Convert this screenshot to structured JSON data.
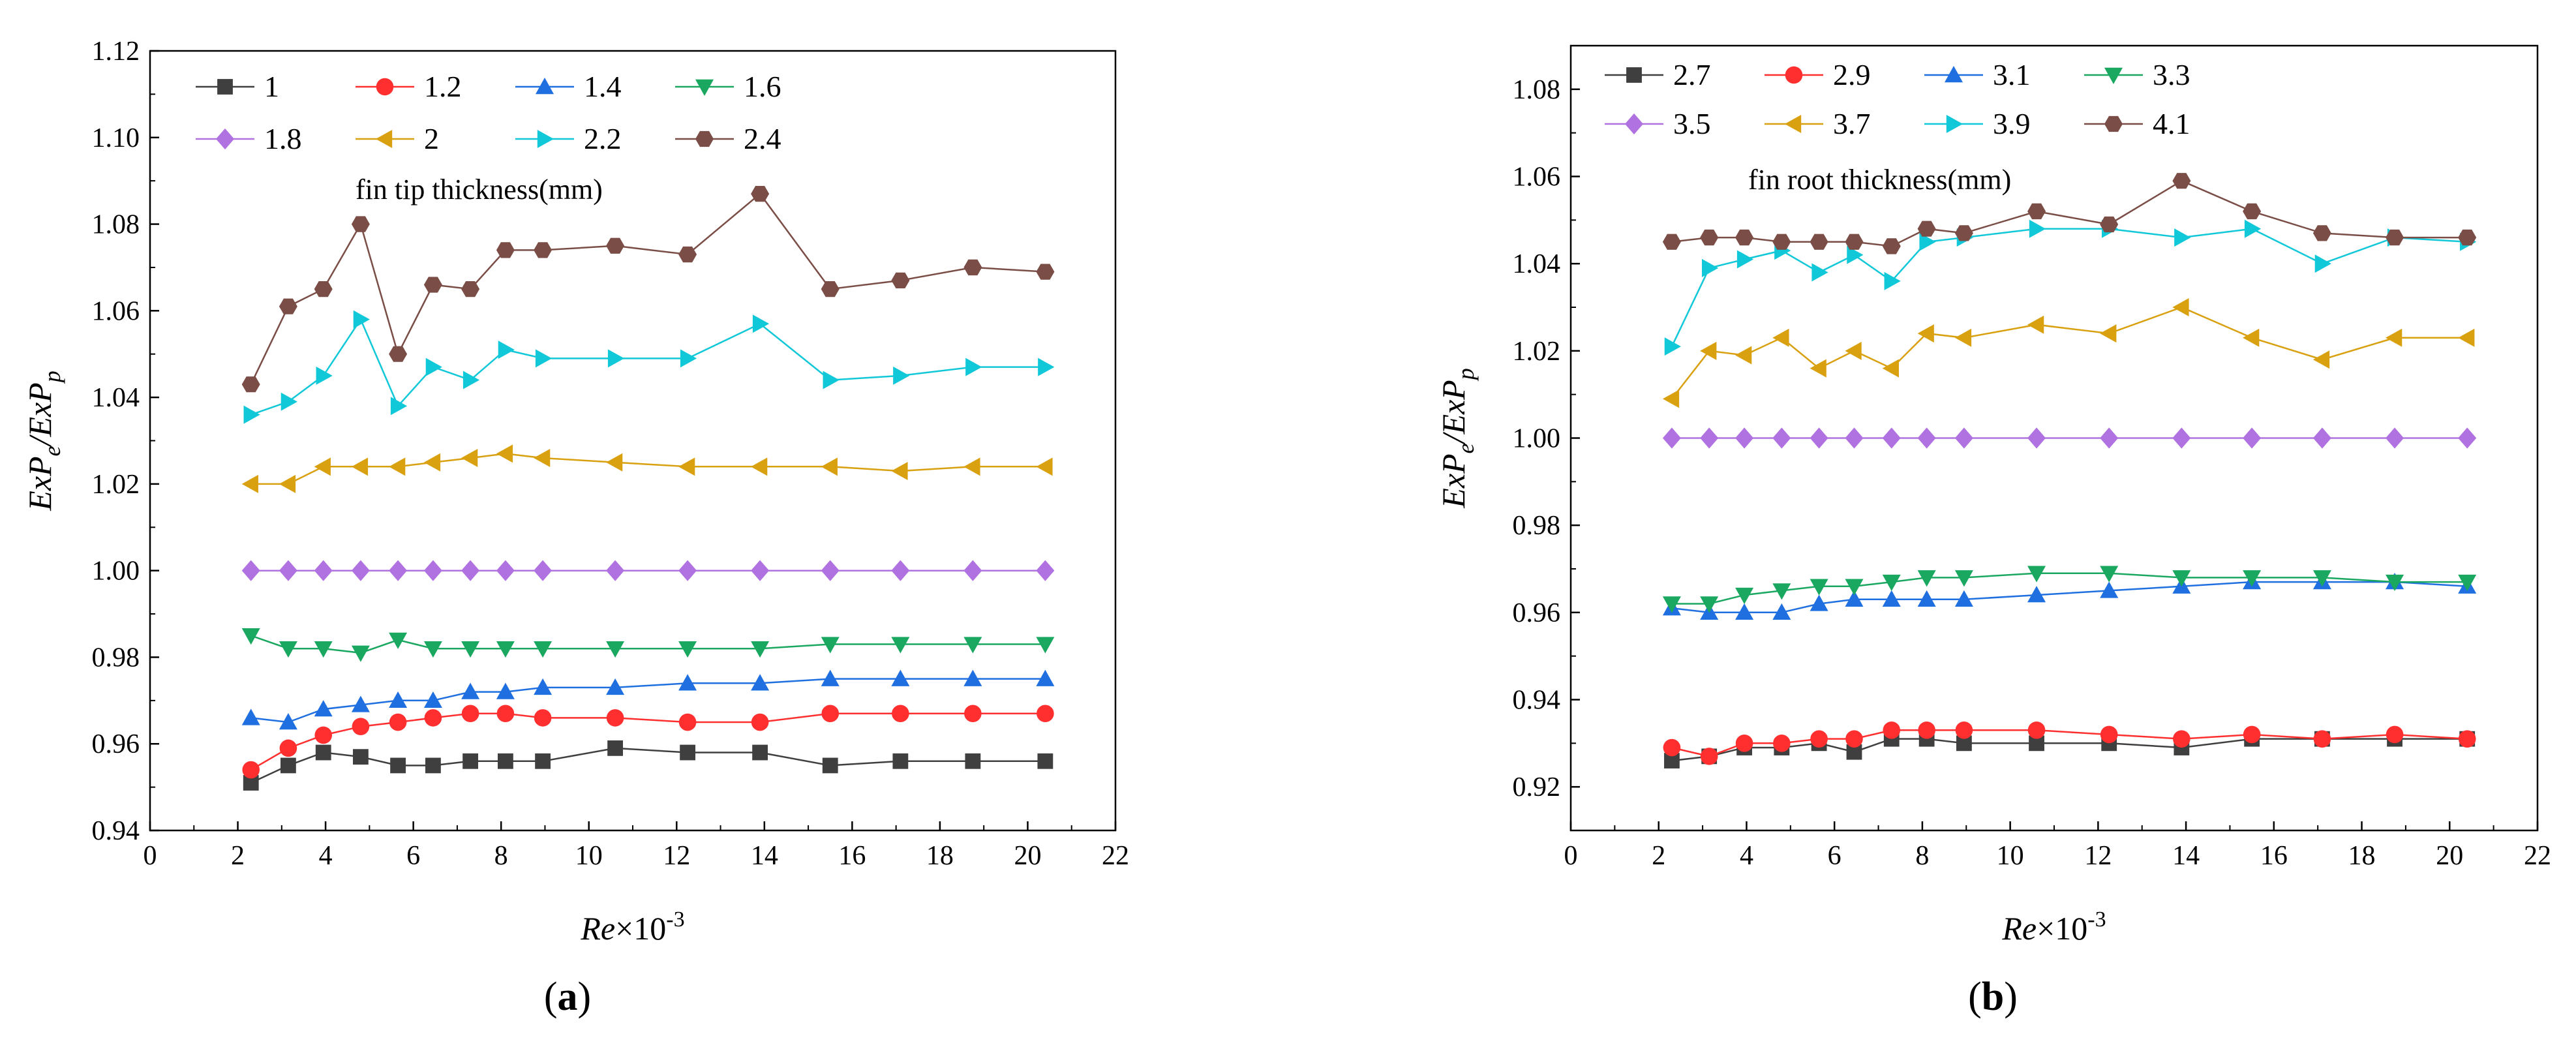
{
  "chart_data": [
    {
      "type": "line",
      "panel_label": "(a)",
      "panel_label_letter": "a",
      "legend_title": "fin tip thickness(mm)",
      "xlabel_var": "Re",
      "xlabel_rest": "×10",
      "xlabel_exp": "-3",
      "ylabel_parts": [
        "ExP",
        "e",
        "/ExP",
        "p"
      ],
      "xlim": [
        0,
        22
      ],
      "ylim": [
        0.94,
        1.12
      ],
      "x_ticks": [
        0,
        2,
        4,
        6,
        8,
        10,
        12,
        14,
        16,
        18,
        20,
        22
      ],
      "x_tick_labels": [
        "0",
        "2",
        "4",
        "6",
        "8",
        "10",
        "12",
        "14",
        "16",
        "18",
        "20",
        "22"
      ],
      "y_ticks": [
        0.94,
        0.96,
        0.98,
        1.0,
        1.02,
        1.04,
        1.06,
        1.08,
        1.1,
        1.12
      ],
      "y_tick_labels": [
        "0.94",
        "0.96",
        "0.98",
        "1.00",
        "1.02",
        "1.04",
        "1.06",
        "1.08",
        "1.10",
        "1.12"
      ],
      "x": [
        2.3,
        3.15,
        3.95,
        4.8,
        5.65,
        6.45,
        7.3,
        8.1,
        8.95,
        10.6,
        12.25,
        13.9,
        15.5,
        17.1,
        18.75,
        20.4
      ],
      "series": [
        {
          "name": "1",
          "color": "#3f3f3f",
          "marker": "square",
          "values": [
            0.951,
            0.955,
            0.958,
            0.957,
            0.955,
            0.955,
            0.956,
            0.956,
            0.956,
            0.959,
            0.958,
            0.958,
            0.955,
            0.956,
            0.956,
            0.956
          ]
        },
        {
          "name": "1.2",
          "color": "#ff2f2f",
          "marker": "circle",
          "values": [
            0.954,
            0.959,
            0.962,
            0.964,
            0.965,
            0.966,
            0.967,
            0.967,
            0.966,
            0.966,
            0.965,
            0.965,
            0.967,
            0.967,
            0.967,
            0.967
          ]
        },
        {
          "name": "1.4",
          "color": "#1f6fe0",
          "marker": "triangle-up",
          "values": [
            0.966,
            0.965,
            0.968,
            0.969,
            0.97,
            0.97,
            0.972,
            0.972,
            0.973,
            0.973,
            0.974,
            0.974,
            0.975,
            0.975,
            0.975,
            0.975
          ]
        },
        {
          "name": "1.6",
          "color": "#1aa760",
          "marker": "triangle-down",
          "values": [
            0.985,
            0.982,
            0.982,
            0.981,
            0.984,
            0.982,
            0.982,
            0.982,
            0.982,
            0.982,
            0.982,
            0.982,
            0.983,
            0.983,
            0.983,
            0.983
          ]
        },
        {
          "name": "1.8",
          "color": "#b072e0",
          "marker": "diamond",
          "values": [
            1.0,
            1.0,
            1.0,
            1.0,
            1.0,
            1.0,
            1.0,
            1.0,
            1.0,
            1.0,
            1.0,
            1.0,
            1.0,
            1.0,
            1.0,
            1.0
          ]
        },
        {
          "name": "2",
          "color": "#d9a010",
          "marker": "triangle-left",
          "values": [
            1.02,
            1.02,
            1.024,
            1.024,
            1.024,
            1.025,
            1.026,
            1.027,
            1.026,
            1.025,
            1.024,
            1.024,
            1.024,
            1.023,
            1.024,
            1.024
          ]
        },
        {
          "name": "2.2",
          "color": "#10c8d8",
          "marker": "triangle-right",
          "values": [
            1.036,
            1.039,
            1.045,
            1.058,
            1.038,
            1.047,
            1.044,
            1.051,
            1.049,
            1.049,
            1.049,
            1.057,
            1.044,
            1.045,
            1.047,
            1.047
          ]
        },
        {
          "name": "2.4",
          "color": "#7a4e46",
          "marker": "hexagon",
          "values": [
            1.043,
            1.061,
            1.065,
            1.08,
            1.05,
            1.066,
            1.065,
            1.074,
            1.074,
            1.075,
            1.073,
            1.087,
            1.065,
            1.067,
            1.07,
            1.069
          ]
        }
      ]
    },
    {
      "type": "line",
      "panel_label": "(b)",
      "panel_label_letter": "b",
      "legend_title": "fin root thickness(mm)",
      "xlabel_var": "Re",
      "xlabel_rest": "×10",
      "xlabel_exp": "-3",
      "ylabel_parts": [
        "ExP",
        "e",
        "/ExP",
        "p"
      ],
      "xlim": [
        0,
        22
      ],
      "ylim": [
        0.91,
        1.09
      ],
      "x_ticks": [
        0,
        2,
        4,
        6,
        8,
        10,
        12,
        14,
        16,
        18,
        20,
        22
      ],
      "x_tick_labels": [
        "0",
        "2",
        "4",
        "6",
        "8",
        "10",
        "12",
        "14",
        "16",
        "18",
        "20",
        "22"
      ],
      "y_ticks": [
        0.92,
        0.94,
        0.96,
        0.98,
        1.0,
        1.02,
        1.04,
        1.06,
        1.08
      ],
      "y_tick_labels": [
        "0.92",
        "0.94",
        "0.96",
        "0.98",
        "1.00",
        "1.02",
        "1.04",
        "1.06",
        "1.08"
      ],
      "x": [
        2.3,
        3.15,
        3.95,
        4.8,
        5.65,
        6.45,
        7.3,
        8.1,
        8.95,
        10.6,
        12.25,
        13.9,
        15.5,
        17.1,
        18.75,
        20.4
      ],
      "series": [
        {
          "name": "2.7",
          "color": "#3f3f3f",
          "marker": "square",
          "values": [
            0.926,
            0.927,
            0.929,
            0.929,
            0.93,
            0.928,
            0.931,
            0.931,
            0.93,
            0.93,
            0.93,
            0.929,
            0.931,
            0.931,
            0.931,
            0.931
          ]
        },
        {
          "name": "2.9",
          "color": "#ff2f2f",
          "marker": "circle",
          "values": [
            0.929,
            0.927,
            0.93,
            0.93,
            0.931,
            0.931,
            0.933,
            0.933,
            0.933,
            0.933,
            0.932,
            0.931,
            0.932,
            0.931,
            0.932,
            0.931
          ]
        },
        {
          "name": "3.1",
          "color": "#1f6fe0",
          "marker": "triangle-up",
          "values": [
            0.961,
            0.96,
            0.96,
            0.96,
            0.962,
            0.963,
            0.963,
            0.963,
            0.963,
            0.964,
            0.965,
            0.966,
            0.967,
            0.967,
            0.967,
            0.966
          ]
        },
        {
          "name": "3.3",
          "color": "#1aa760",
          "marker": "triangle-down",
          "values": [
            0.962,
            0.962,
            0.964,
            0.965,
            0.966,
            0.966,
            0.967,
            0.968,
            0.968,
            0.969,
            0.969,
            0.968,
            0.968,
            0.968,
            0.967,
            0.967
          ]
        },
        {
          "name": "3.5",
          "color": "#b072e0",
          "marker": "diamond",
          "values": [
            1.0,
            1.0,
            1.0,
            1.0,
            1.0,
            1.0,
            1.0,
            1.0,
            1.0,
            1.0,
            1.0,
            1.0,
            1.0,
            1.0,
            1.0,
            1.0
          ]
        },
        {
          "name": "3.7",
          "color": "#d9a010",
          "marker": "triangle-left",
          "values": [
            1.009,
            1.02,
            1.019,
            1.023,
            1.016,
            1.02,
            1.016,
            1.024,
            1.023,
            1.026,
            1.024,
            1.03,
            1.023,
            1.018,
            1.023,
            1.023
          ]
        },
        {
          "name": "3.9",
          "color": "#10c8d8",
          "marker": "triangle-right",
          "values": [
            1.021,
            1.039,
            1.041,
            1.043,
            1.038,
            1.042,
            1.036,
            1.045,
            1.046,
            1.048,
            1.048,
            1.046,
            1.048,
            1.04,
            1.046,
            1.045
          ]
        },
        {
          "name": "4.1",
          "color": "#7a4e46",
          "marker": "hexagon",
          "values": [
            1.045,
            1.046,
            1.046,
            1.045,
            1.045,
            1.045,
            1.044,
            1.048,
            1.047,
            1.052,
            1.049,
            1.059,
            1.052,
            1.047,
            1.046,
            1.046
          ]
        }
      ]
    }
  ]
}
